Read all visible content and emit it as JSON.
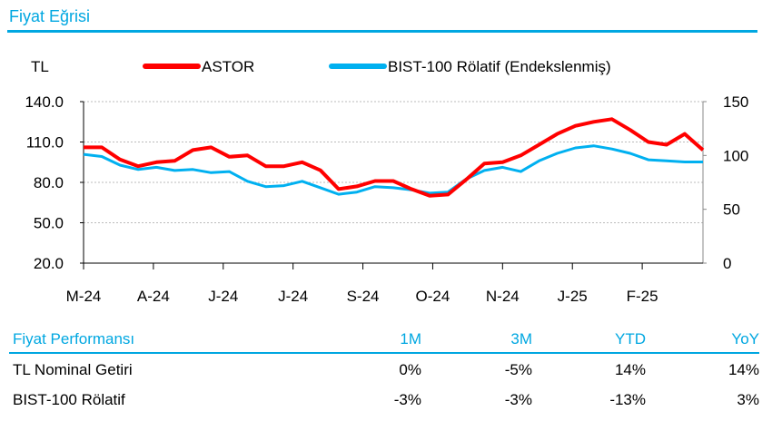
{
  "title": "Fiyat Eğrisi",
  "chart_data": {
    "type": "line",
    "left_axis_label": "TL",
    "x_tick_labels": [
      "M-24",
      "A-24",
      "J-24",
      "J-24",
      "S-24",
      "O-24",
      "N-24",
      "J-25",
      "F-25"
    ],
    "left_ylim": [
      20,
      140
    ],
    "left_ticks": [
      "140.0",
      "110.0",
      "80.0",
      "50.0",
      "20.0"
    ],
    "right_ylim": [
      0,
      150
    ],
    "right_ticks": [
      "150",
      "100",
      "50",
      "0"
    ],
    "grid": true,
    "legend_position": "top",
    "series": [
      {
        "name": "ASTOR",
        "axis": "left",
        "color": "#ff0000",
        "values": [
          106,
          106,
          97,
          92,
          95,
          96,
          104,
          106,
          99,
          100,
          92,
          92,
          95,
          89,
          75,
          77,
          81,
          81,
          75,
          70,
          71,
          82,
          94,
          95,
          100,
          108,
          116,
          122,
          125,
          127,
          119,
          110,
          108,
          116,
          104
        ]
      },
      {
        "name": "BIST-100 Rölatif (Endekslenmiş)",
        "axis": "right",
        "color": "#00b0f0",
        "values": [
          101,
          99,
          91,
          87,
          89,
          86,
          87,
          84,
          85,
          76,
          71,
          72,
          76,
          70,
          64,
          66,
          71,
          70,
          68,
          65,
          66,
          78,
          86,
          89,
          85,
          95,
          102,
          107,
          109,
          106,
          102,
          96,
          95,
          94,
          94
        ]
      }
    ]
  },
  "performance": {
    "header": "Fiyat Performansı",
    "columns": [
      "1M",
      "3M",
      "YTD",
      "YoY"
    ],
    "rows": [
      {
        "label": "TL Nominal Getiri",
        "values": [
          "0%",
          "-5%",
          "14%",
          "14%"
        ]
      },
      {
        "label": "BIST-100 Rölatif",
        "values": [
          "-3%",
          "-3%",
          "-13%",
          "3%"
        ]
      }
    ]
  }
}
